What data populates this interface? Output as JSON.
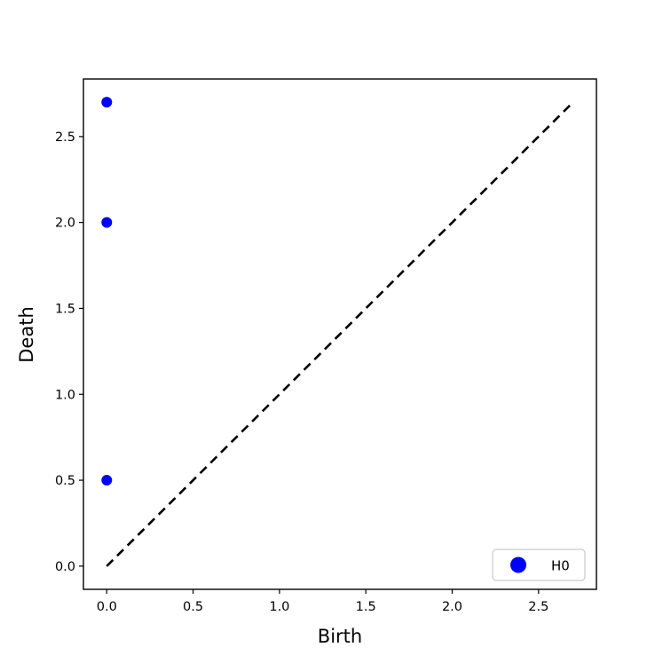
{
  "chart_data": {
    "type": "scatter",
    "xlabel": "Birth",
    "ylabel": "Death",
    "xlim": [
      -0.135,
      2.835
    ],
    "ylim": [
      -0.135,
      2.835
    ],
    "x_ticks": [
      0.0,
      0.5,
      1.0,
      1.5,
      2.0,
      2.5
    ],
    "x_tick_labels": [
      "0.0",
      "0.5",
      "1.0",
      "1.5",
      "2.0",
      "2.5"
    ],
    "y_ticks": [
      0.0,
      0.5,
      1.0,
      1.5,
      2.0,
      2.5
    ],
    "y_tick_labels": [
      "0.0",
      "0.5",
      "1.0",
      "1.5",
      "2.0",
      "2.5"
    ],
    "grid": false,
    "legend_position": "bottom-right",
    "series": [
      {
        "name": "H0",
        "color": "#0000ff",
        "points": [
          {
            "x": 0.0,
            "y": 0.5
          },
          {
            "x": 0.0,
            "y": 2.0
          },
          {
            "x": 0.0,
            "y": 2.7
          }
        ]
      }
    ],
    "diagonal": {
      "style": "dashed",
      "color": "#000000",
      "from": [
        0.0,
        0.0
      ],
      "to": [
        2.7,
        2.7
      ]
    }
  }
}
